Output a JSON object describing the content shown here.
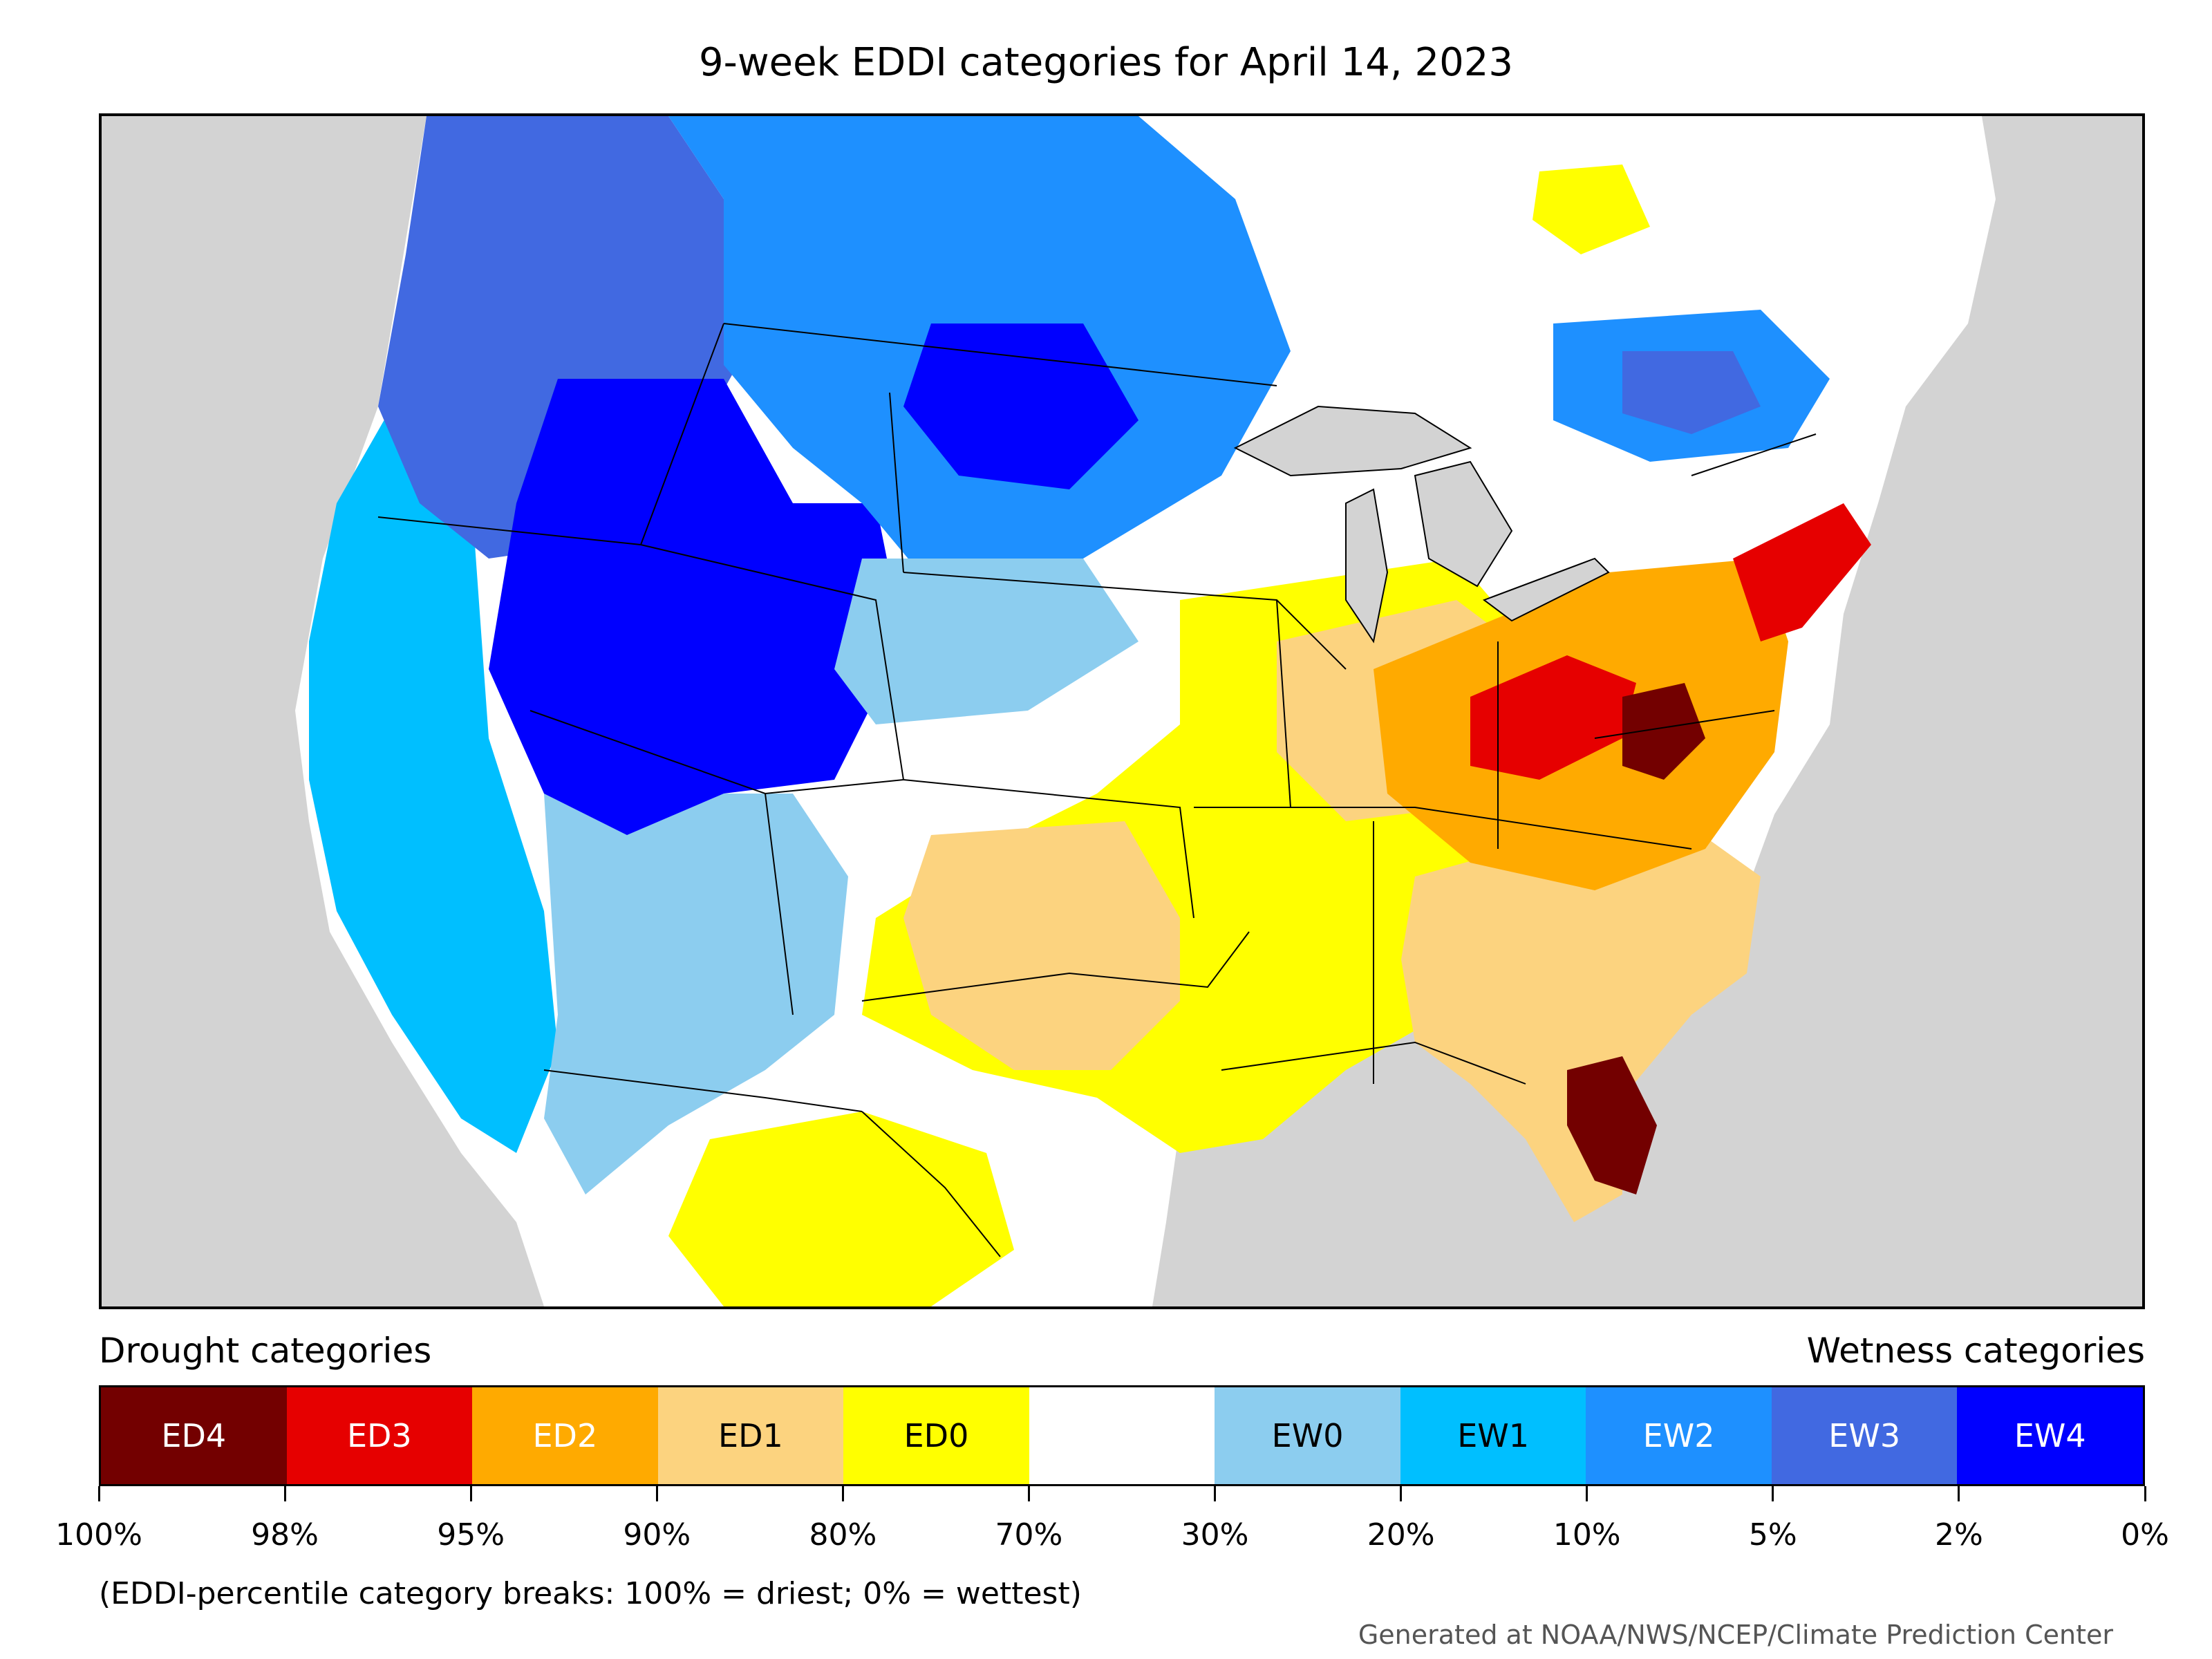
{
  "title": "9-week EDDI categories for April 14, 2023",
  "legend": {
    "drought_heading": "Drought categories",
    "wetness_heading": "Wetness categories",
    "categories": [
      {
        "label": "ED4",
        "color": "#730000",
        "text_color": "#ffffff"
      },
      {
        "label": "ED3",
        "color": "#e60000",
        "text_color": "#ffffff"
      },
      {
        "label": "ED2",
        "color": "#ffaa00",
        "text_color": "#ffffff"
      },
      {
        "label": "ED1",
        "color": "#fcd37f",
        "text_color": "#000000"
      },
      {
        "label": "ED0",
        "color": "#ffff00",
        "text_color": "#000000"
      },
      {
        "label": "",
        "color": "#ffffff",
        "text_color": "#000000"
      },
      {
        "label": "EW0",
        "color": "#8ccdef",
        "text_color": "#000000"
      },
      {
        "label": "EW1",
        "color": "#00bfff",
        "text_color": "#000000"
      },
      {
        "label": "EW2",
        "color": "#1e90ff",
        "text_color": "#ffffff"
      },
      {
        "label": "EW3",
        "color": "#4169e1",
        "text_color": "#ffffff"
      },
      {
        "label": "EW4",
        "color": "#0000ff",
        "text_color": "#ffffff"
      }
    ],
    "breaks": [
      "100%",
      "98%",
      "95%",
      "90%",
      "80%",
      "70%",
      "30%",
      "20%",
      "10%",
      "5%",
      "2%",
      "0%"
    ]
  },
  "note": "(EDDI-percentile category breaks: 100% = driest; 0% = wettest)",
  "credit": "Generated at NOAA/NWS/NCEP/Climate Prediction Center",
  "map": {
    "background_color": "#d3d3d3",
    "lake_color": "#d3d3d3",
    "regions": [
      {
        "name": "pacific-northwest",
        "category": "EW3"
      },
      {
        "name": "great-basin",
        "category": "EW4"
      },
      {
        "name": "california",
        "category": "EW1"
      },
      {
        "name": "southwest",
        "category": "EW0"
      },
      {
        "name": "northern-plains",
        "category": "EW2"
      },
      {
        "name": "central-plains",
        "category": "ED0"
      },
      {
        "name": "southern-plains",
        "category": "ED1"
      },
      {
        "name": "ohio-valley",
        "category": "ED2"
      },
      {
        "name": "kentucky-west-virginia",
        "category": "ED3"
      },
      {
        "name": "virginia",
        "category": "ED4"
      },
      {
        "name": "northeast-coast",
        "category": "ED3"
      },
      {
        "name": "southeast",
        "category": "ED1"
      },
      {
        "name": "florida",
        "category": "ED4"
      },
      {
        "name": "quebec",
        "category": "EW2"
      }
    ]
  }
}
